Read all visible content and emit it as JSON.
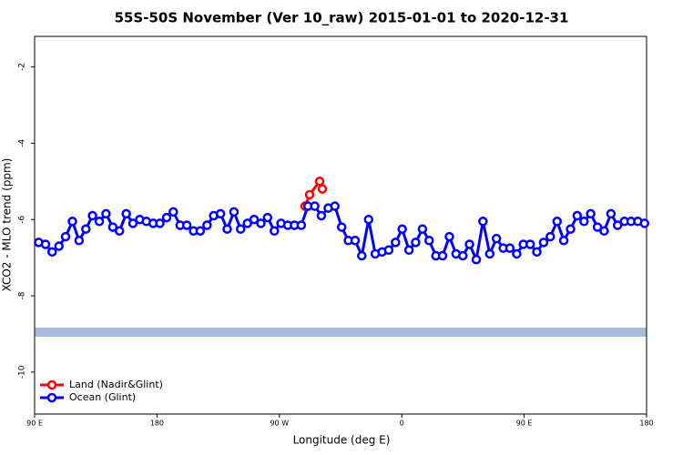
{
  "chart_data": {
    "type": "line",
    "title": "55S-50S November (Ver 10_raw)   2015-01-01 to 2020-12-31",
    "x_label": "Longitude (deg E)",
    "y_label": "XCO2 - MLO trend (ppm)",
    "xlim": [
      90,
      540
    ],
    "xticks": [
      {
        "value": 90,
        "label": "90 E"
      },
      180,
      {
        "value": 270,
        "label": "90 W"
      },
      {
        "value": 360,
        "label": "0"
      },
      {
        "value": 450,
        "label": "90 E"
      },
      {
        "value": 540,
        "label": "180"
      }
    ],
    "ylim": [
      -11.1,
      -1.2
    ],
    "yticks": [
      -10,
      -8,
      -6,
      -4,
      -2
    ],
    "legend": "bottom-left",
    "series": [
      {
        "name": "Land (Nadir&Glint)",
        "color": "#ff0000",
        "x": [
          288.9,
          292.2,
          299.6,
          301.6
        ],
        "values": [
          -5.65,
          -5.35,
          -5.0,
          -5.2
        ]
      },
      {
        "name": "Ocean (Glint)",
        "color": "#0000ff",
        "x": [
          93.0,
          98.0,
          102.9,
          107.9,
          112.8,
          117.8,
          122.7,
          127.7,
          132.6,
          137.6,
          142.5,
          147.5,
          152.4,
          157.4,
          162.3,
          167.3,
          172.2,
          177.2,
          182.1,
          187.1,
          192.0,
          197.0,
          201.9,
          206.9,
          211.8,
          216.8,
          221.7,
          226.7,
          231.6,
          236.6,
          241.5,
          246.5,
          251.4,
          256.4,
          261.3,
          266.3,
          271.2,
          276.2,
          281.1,
          286.1,
          291.0,
          296.0,
          300.9,
          305.9,
          310.8,
          315.8,
          320.7,
          325.7,
          330.6,
          335.6,
          340.5,
          345.5,
          350.4,
          355.4,
          360.3,
          365.3,
          370.2,
          375.2,
          380.1,
          385.1,
          390.0,
          395.0,
          399.9,
          404.9,
          409.8,
          414.8,
          419.7,
          424.7,
          429.6,
          434.6,
          439.5,
          444.5,
          449.4,
          454.4,
          459.3,
          464.3,
          469.2,
          474.2,
          479.1,
          484.1,
          489.0,
          494.0,
          498.9,
          503.9,
          508.8,
          513.8,
          518.7,
          523.7,
          528.6,
          533.6,
          538.5
        ],
        "values": [
          -6.6,
          -6.65,
          -6.85,
          -6.7,
          -6.45,
          -6.05,
          -6.55,
          -6.25,
          -5.9,
          -6.05,
          -5.85,
          -6.2,
          -6.3,
          -5.85,
          -6.1,
          -6.0,
          -6.05,
          -6.1,
          -6.1,
          -5.95,
          -5.8,
          -6.15,
          -6.15,
          -6.3,
          -6.3,
          -6.15,
          -5.9,
          -5.85,
          -6.25,
          -5.8,
          -6.25,
          -6.1,
          -6.0,
          -6.1,
          -5.95,
          -6.3,
          -6.1,
          -6.15,
          -6.15,
          -6.15,
          -5.65,
          -5.65,
          -5.9,
          -5.7,
          -5.65,
          -6.2,
          -6.55,
          -6.55,
          -6.95,
          -6.0,
          -6.9,
          -6.85,
          -6.8,
          -6.6,
          -6.25,
          -6.8,
          -6.6,
          -6.25,
          -6.55,
          -6.95,
          -6.95,
          -6.45,
          -6.9,
          -6.95,
          -6.65,
          -7.05,
          -6.05,
          -6.9,
          -6.5,
          -6.75,
          -6.75,
          -6.9,
          -6.65,
          -6.65,
          -6.85,
          -6.6,
          -6.45,
          -6.05,
          -6.55,
          -6.25,
          -5.9,
          -6.05,
          -5.85,
          -6.2,
          -6.3,
          -5.85,
          -6.15,
          -6.05,
          -6.05,
          -6.05,
          -6.1
        ]
      }
    ]
  }
}
